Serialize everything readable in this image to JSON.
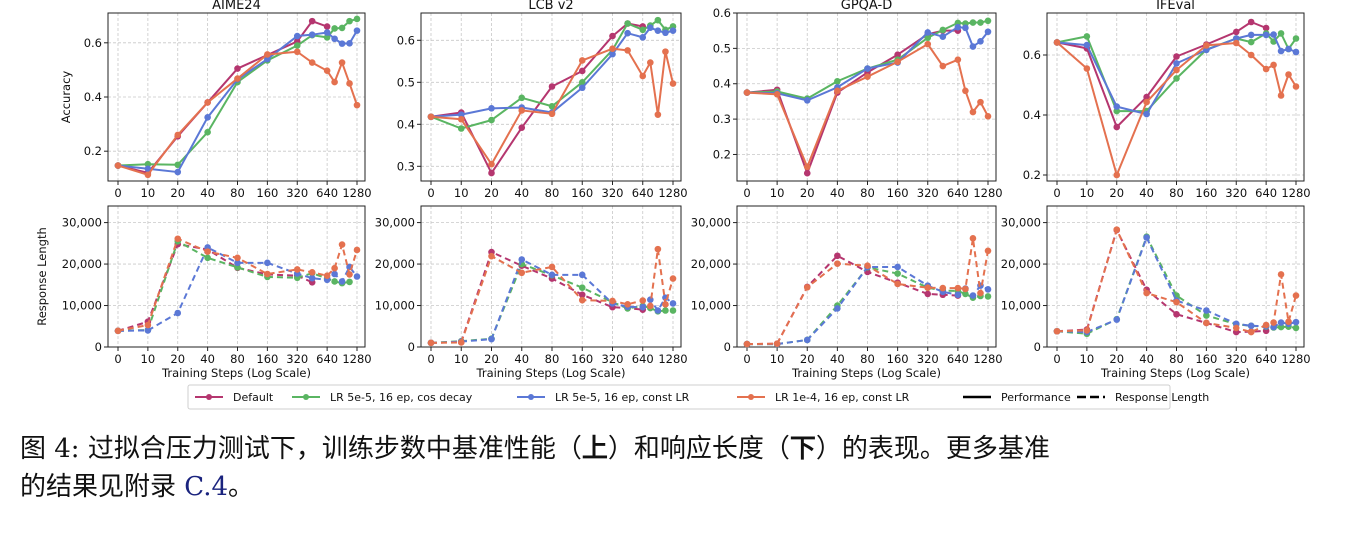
{
  "chart_data": [
    {
      "type": "line",
      "title": "AIME24",
      "metric": "Performance",
      "ylabel": "Accuracy",
      "xlabel": "",
      "x": [
        0,
        10,
        20,
        40,
        80,
        160,
        320,
        480,
        640,
        800,
        960,
        1120,
        1280
      ],
      "xticks": [
        "0",
        "10",
        "20",
        "40",
        "80",
        "160",
        "320",
        "640",
        "1280"
      ],
      "ylim": [
        0.09,
        0.71
      ],
      "yticks": [
        0.2,
        0.4,
        0.6
      ],
      "ytick_labels": [
        "0.2",
        "0.4",
        "0.6"
      ],
      "grid": true,
      "series": [
        {
          "name": "Default",
          "values": [
            0.147,
            0.12,
            0.255,
            0.38,
            0.505,
            0.555,
            0.605,
            0.68,
            0.66,
            null,
            null,
            null,
            null
          ]
        },
        {
          "name": "LR 5e-5, 16 ep, cos decay",
          "values": [
            0.147,
            0.152,
            0.15,
            0.27,
            0.455,
            0.535,
            0.59,
            0.628,
            0.62,
            0.653,
            0.655,
            0.68,
            0.688
          ]
        },
        {
          "name": "LR 5e-5, 16 ep, const LR",
          "values": [
            0.147,
            0.135,
            0.123,
            0.325,
            0.465,
            0.54,
            0.625,
            0.63,
            0.638,
            0.615,
            0.597,
            0.598,
            0.645
          ]
        },
        {
          "name": "LR 1e-4, 16 ep, const LR",
          "values": [
            0.147,
            0.113,
            0.26,
            0.38,
            0.468,
            0.557,
            0.567,
            0.527,
            0.497,
            0.455,
            0.527,
            0.45,
            0.37
          ]
        }
      ]
    },
    {
      "type": "line",
      "title": "LCB v2",
      "metric": "Performance",
      "ylabel": "",
      "xlabel": "",
      "x": [
        0,
        10,
        20,
        40,
        80,
        160,
        320,
        480,
        640,
        800,
        960,
        1120,
        1280
      ],
      "xticks": [
        "0",
        "10",
        "20",
        "40",
        "80",
        "160",
        "320",
        "640",
        "1280"
      ],
      "ylim": [
        0.265,
        0.665
      ],
      "yticks": [
        0.3,
        0.4,
        0.5,
        0.6
      ],
      "ytick_labels": [
        "0.3",
        "0.4",
        "0.5",
        "0.6"
      ],
      "grid": true,
      "series": [
        {
          "name": "Default",
          "values": [
            0.418,
            0.428,
            0.284,
            0.392,
            0.49,
            0.527,
            0.61,
            0.64,
            0.633,
            null,
            null,
            null,
            null
          ]
        },
        {
          "name": "LR 5e-5, 16 ep, cos decay",
          "values": [
            0.418,
            0.39,
            0.41,
            0.463,
            0.443,
            0.5,
            0.577,
            0.64,
            0.625,
            0.635,
            0.648,
            0.625,
            0.633
          ]
        },
        {
          "name": "LR 5e-5, 16 ep, const LR",
          "values": [
            0.418,
            0.423,
            0.438,
            0.44,
            0.428,
            0.487,
            0.567,
            0.617,
            0.607,
            0.63,
            0.623,
            0.618,
            0.623
          ]
        },
        {
          "name": "LR 1e-4, 16 ep, const LR",
          "values": [
            0.418,
            0.412,
            0.305,
            0.433,
            0.425,
            0.552,
            0.58,
            0.576,
            0.515,
            0.547,
            0.423,
            0.573,
            0.497
          ]
        }
      ]
    },
    {
      "type": "line",
      "title": "GPQA-D",
      "metric": "Performance",
      "ylabel": "",
      "xlabel": "",
      "x": [
        0,
        10,
        20,
        40,
        80,
        160,
        320,
        480,
        640,
        800,
        960,
        1120,
        1280
      ],
      "xticks": [
        "0",
        "10",
        "20",
        "40",
        "80",
        "160",
        "320",
        "640",
        "1280"
      ],
      "ylim": [
        0.125,
        0.6
      ],
      "yticks": [
        0.2,
        0.3,
        0.4,
        0.5,
        0.6
      ],
      "ytick_labels": [
        "0.2",
        "0.3",
        "0.4",
        "0.5",
        "0.6"
      ],
      "grid": true,
      "series": [
        {
          "name": "Default",
          "values": [
            0.375,
            0.383,
            0.147,
            0.375,
            0.432,
            0.482,
            0.54,
            0.55,
            0.55,
            null,
            null,
            null,
            null
          ]
        },
        {
          "name": "LR 5e-5, 16 ep, cos decay",
          "values": [
            0.375,
            0.378,
            0.358,
            0.407,
            0.443,
            0.468,
            0.53,
            0.552,
            0.572,
            0.57,
            0.573,
            0.573,
            0.578
          ]
        },
        {
          "name": "LR 5e-5, 16 ep, const LR",
          "values": [
            0.375,
            0.373,
            0.353,
            0.39,
            0.443,
            0.46,
            0.545,
            0.533,
            0.56,
            0.558,
            0.505,
            0.52,
            0.547
          ]
        },
        {
          "name": "LR 1e-4, 16 ep, const LR",
          "values": [
            0.375,
            0.37,
            0.165,
            0.38,
            0.42,
            0.462,
            0.512,
            0.45,
            0.468,
            0.38,
            0.32,
            0.348,
            0.308
          ]
        }
      ]
    },
    {
      "type": "line",
      "title": "IFEval",
      "metric": "Performance",
      "ylabel": "",
      "xlabel": "",
      "x": [
        0,
        10,
        20,
        40,
        80,
        160,
        320,
        480,
        640,
        800,
        960,
        1120,
        1280
      ],
      "xticks": [
        "0",
        "10",
        "20",
        "40",
        "80",
        "160",
        "320",
        "640",
        "1280"
      ],
      "ylim": [
        0.18,
        0.74
      ],
      "yticks": [
        0.2,
        0.4,
        0.6
      ],
      "ytick_labels": [
        "0.2",
        "0.4",
        "0.6"
      ],
      "grid": true,
      "series": [
        {
          "name": "Default",
          "values": [
            0.642,
            0.622,
            0.36,
            0.46,
            0.595,
            0.635,
            0.677,
            0.71,
            0.69,
            null,
            null,
            null,
            null
          ]
        },
        {
          "name": "LR 5e-5, 16 ep, cos decay",
          "values": [
            0.642,
            0.662,
            0.413,
            0.413,
            0.522,
            0.618,
            0.655,
            0.643,
            0.672,
            0.645,
            0.672,
            0.62,
            0.655
          ]
        },
        {
          "name": "LR 5e-5, 16 ep, const LR",
          "values": [
            0.642,
            0.633,
            0.428,
            0.403,
            0.572,
            0.617,
            0.655,
            0.667,
            0.667,
            0.668,
            0.613,
            0.62,
            0.61
          ]
        },
        {
          "name": "LR 1e-4, 16 ep, const LR",
          "values": [
            0.642,
            0.555,
            0.2,
            0.443,
            0.55,
            0.632,
            0.64,
            0.6,
            0.553,
            0.567,
            0.465,
            0.535,
            0.495
          ]
        }
      ]
    },
    {
      "type": "line",
      "title": "",
      "metric": "Response Length",
      "ylabel": "Response Length",
      "xlabel": "Training Steps (Log Scale)",
      "x": [
        0,
        10,
        20,
        40,
        80,
        160,
        320,
        480,
        640,
        800,
        960,
        1120,
        1280
      ],
      "xticks": [
        "0",
        "10",
        "20",
        "40",
        "80",
        "160",
        "320",
        "640",
        "1280"
      ],
      "ylim": [
        0,
        34000
      ],
      "yticks": [
        0,
        10000,
        20000,
        30000
      ],
      "ytick_labels": [
        "0",
        "10,000",
        "20,000",
        "30,000"
      ],
      "grid": true,
      "series": [
        {
          "name": "Default",
          "values": [
            3900,
            6100,
            24800,
            23500,
            19100,
            17500,
            17200,
            15600,
            null,
            null,
            null,
            null,
            null
          ]
        },
        {
          "name": "LR 5e-5, 16 ep, cos decay",
          "values": [
            3900,
            4100,
            25500,
            21500,
            19200,
            16900,
            16700,
            17800,
            16500,
            15800,
            15400,
            15700,
            null
          ]
        },
        {
          "name": "LR 5e-5, 16 ep, const LR",
          "values": [
            3900,
            4000,
            8200,
            24000,
            20300,
            20300,
            17700,
            16600,
            16200,
            17600,
            15800,
            19300,
            17000
          ]
        },
        {
          "name": "LR 1e-4, 16 ep, const LR",
          "values": [
            3900,
            5300,
            26100,
            23000,
            21500,
            17600,
            18700,
            18000,
            17200,
            19000,
            24700,
            17500,
            23400
          ]
        }
      ]
    },
    {
      "type": "line",
      "title": "",
      "metric": "Response Length",
      "ylabel": "",
      "xlabel": "Training Steps (Log Scale)",
      "x": [
        0,
        10,
        20,
        40,
        80,
        160,
        320,
        480,
        640,
        800,
        960,
        1120,
        1280
      ],
      "xticks": [
        "0",
        "10",
        "20",
        "40",
        "80",
        "160",
        "320",
        "640",
        "1280"
      ],
      "ylim": [
        0,
        34000
      ],
      "yticks": [
        0,
        10000,
        20000,
        30000
      ],
      "ytick_labels": [
        "0",
        "10,000",
        "20,000",
        "30,000"
      ],
      "grid": true,
      "series": [
        {
          "name": "Default",
          "values": [
            1000,
            1200,
            22900,
            19600,
            16500,
            12600,
            9600,
            9400,
            9000,
            null,
            null,
            null,
            null
          ]
        },
        {
          "name": "LR 5e-5, 16 ep, cos decay",
          "values": [
            1000,
            1400,
            2000,
            20000,
            17300,
            14300,
            10800,
            9300,
            9900,
            9400,
            8600,
            8800,
            8800
          ]
        },
        {
          "name": "LR 5e-5, 16 ep, const LR",
          "values": [
            1000,
            1300,
            1900,
            21100,
            17400,
            17400,
            10500,
            9700,
            9600,
            11400,
            8800,
            11900,
            10500
          ]
        },
        {
          "name": "LR 1e-4, 16 ep, const LR",
          "values": [
            1000,
            1100,
            21900,
            17900,
            19300,
            11300,
            11100,
            10300,
            11200,
            9900,
            23600,
            10300,
            16500
          ]
        }
      ]
    },
    {
      "type": "line",
      "title": "",
      "metric": "Response Length",
      "ylabel": "",
      "xlabel": "Training Steps (Log Scale)",
      "x": [
        0,
        10,
        20,
        40,
        80,
        160,
        320,
        480,
        640,
        800,
        960,
        1120,
        1280
      ],
      "xticks": [
        "0",
        "10",
        "20",
        "40",
        "80",
        "160",
        "320",
        "640",
        "1280"
      ],
      "ylim": [
        0,
        34000
      ],
      "yticks": [
        0,
        10000,
        20000,
        30000
      ],
      "ytick_labels": [
        "0",
        "10,000",
        "20,000",
        "30,000"
      ],
      "grid": true,
      "series": [
        {
          "name": "Default",
          "values": [
            700,
            800,
            14500,
            22000,
            18100,
            15500,
            12800,
            12600,
            12400,
            null,
            null,
            null,
            null
          ]
        },
        {
          "name": "LR 5e-5, 16 ep, cos decay",
          "values": [
            700,
            700,
            1700,
            10000,
            19200,
            17700,
            14300,
            13600,
            13500,
            12800,
            11900,
            12300,
            12200
          ]
        },
        {
          "name": "LR 5e-5, 16 ep, const LR",
          "values": [
            700,
            700,
            1700,
            9300,
            19300,
            19300,
            14800,
            13300,
            12600,
            14100,
            12400,
            14800,
            13900
          ]
        },
        {
          "name": "LR 1e-4, 16 ep, const LR",
          "values": [
            700,
            800,
            14400,
            20100,
            19600,
            15200,
            14300,
            14200,
            14200,
            14000,
            26200,
            13000,
            23200
          ]
        }
      ]
    },
    {
      "type": "line",
      "title": "",
      "metric": "Response Length",
      "ylabel": "",
      "xlabel": "Training Steps (Log Scale)",
      "x": [
        0,
        10,
        20,
        40,
        80,
        160,
        320,
        480,
        640,
        800,
        960,
        1120,
        1280
      ],
      "xticks": [
        "0",
        "10",
        "20",
        "40",
        "80",
        "160",
        "320",
        "640",
        "1280"
      ],
      "ylim": [
        0,
        34000
      ],
      "yticks": [
        0,
        10000,
        20000,
        30000
      ],
      "ytick_labels": [
        "0",
        "10,000",
        "20,000",
        "30,000"
      ],
      "grid": true,
      "series": [
        {
          "name": "Default",
          "values": [
            3800,
            4200,
            28200,
            13800,
            7900,
            5800,
            3600,
            3700,
            3900,
            null,
            null,
            null,
            null
          ]
        },
        {
          "name": "LR 5e-5, 16 ep, cos decay",
          "values": [
            3800,
            3200,
            6700,
            26600,
            12400,
            7600,
            5500,
            5100,
            4900,
            4700,
            4800,
            4900,
            4600
          ]
        },
        {
          "name": "LR 5e-5, 16 ep, const LR",
          "values": [
            3800,
            3600,
            6600,
            26400,
            11200,
            8800,
            5600,
            5100,
            5000,
            4800,
            5900,
            5600,
            6000
          ]
        },
        {
          "name": "LR 1e-4, 16 ep, const LR",
          "values": [
            3800,
            4000,
            28300,
            13000,
            10800,
            5800,
            4600,
            3600,
            5300,
            5900,
            17500,
            6100,
            12400
          ]
        }
      ]
    }
  ],
  "legend": {
    "placement": "bottom-center",
    "items": [
      {
        "label": "Default",
        "color": "#b5366f",
        "style": "marker-line"
      },
      {
        "label": "LR 5e-5, 16 ep, cos decay",
        "color": "#5ab562",
        "style": "marker-line"
      },
      {
        "label": "LR 5e-5, 16 ep, const LR",
        "color": "#5b78d6",
        "style": "marker-line"
      },
      {
        "label": "LR 1e-4, 16 ep, const LR",
        "color": "#e4714f",
        "style": "marker-line"
      },
      {
        "label": "Performance",
        "color": "#000000",
        "style": "solid"
      },
      {
        "label": "Response Length",
        "color": "#000000",
        "style": "dashed"
      }
    ]
  },
  "series_colors": [
    "#b5366f",
    "#5ab562",
    "#5b78d6",
    "#e4714f"
  ],
  "caption": {
    "prefix": "图 4: 过拟合压力测试下，训练步数中基准性能（",
    "bold1": "上",
    "middle": "）和响应长度（",
    "bold2": "下",
    "suffix": "）的表现。更多基准",
    "line2": "的结果见附录 ",
    "ref": "C.4",
    "end": "。"
  }
}
